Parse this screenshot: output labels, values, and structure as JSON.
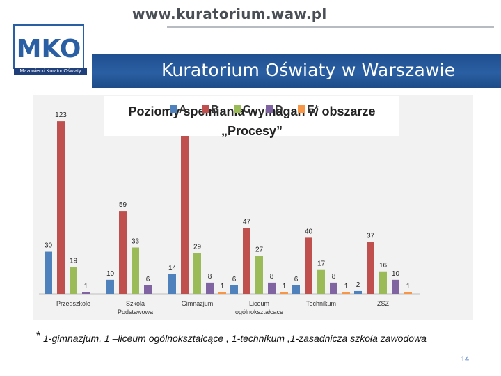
{
  "header": {
    "url": "www.kuratorium.waw.pl",
    "logo_letters": "MKO",
    "logo_caption": "Mazowiecki Kurator Oświaty",
    "banner_title": "Kuratorium Oświaty w Warszawie"
  },
  "chart_data": {
    "type": "bar",
    "title": "Poziomy spełniania wymagań w obszarze „Procesy”",
    "categories": [
      "Przedszkole",
      "Szkoła Podstawowa",
      "Gimnazjum",
      "Liceum ogólnokształcące",
      "Technikum",
      "ZSZ"
    ],
    "series": [
      {
        "name": "A",
        "color": "#4f81bd",
        "values": [
          30,
          10,
          14,
          6,
          6,
          2
        ]
      },
      {
        "name": "B",
        "color": "#c0504d",
        "values": [
          123,
          59,
          123,
          47,
          40,
          37
        ]
      },
      {
        "name": "C",
        "color": "#9bbb59",
        "values": [
          19,
          33,
          29,
          27,
          17,
          16
        ]
      },
      {
        "name": "D",
        "color": "#8064a2",
        "values": [
          1,
          6,
          8,
          8,
          8,
          10
        ]
      },
      {
        "name": "E*",
        "color": "#f79646",
        "values": [
          0,
          0,
          1,
          1,
          1,
          1
        ]
      }
    ],
    "labels": [
      [
        "30",
        "123",
        "19",
        "1",
        ""
      ],
      [
        "10",
        "59",
        "33",
        "6",
        ""
      ],
      [
        "14",
        "",
        "29",
        "8",
        "1"
      ],
      [
        "6",
        "47",
        "27",
        "8",
        "1"
      ],
      [
        "6",
        "40",
        "17",
        "8",
        "1"
      ],
      [
        "2",
        "37",
        "16",
        "10",
        "1"
      ]
    ],
    "ylim": [
      0,
      130
    ],
    "grid": false,
    "legend_position": "top"
  },
  "footnote": {
    "star": "*",
    "text": "1-gimnazjum, 1 –liceum ogólnokształcące , 1-technikum ,1-zasadnicza szkoła zawodowa"
  },
  "slide_number": "14"
}
